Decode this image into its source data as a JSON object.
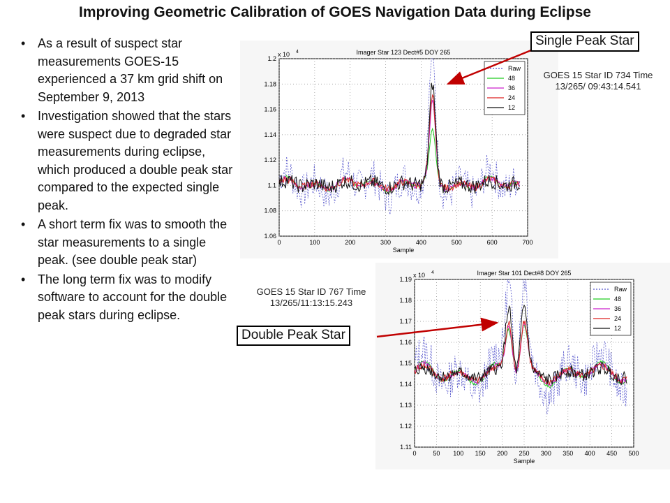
{
  "title": "Improving Geometric Calibration of GOES Navigation Data during Eclipse",
  "bullets": [
    "As a result of suspect star measurements GOES-15 experienced a 37 km grid shift on September 9, 2013",
    "Investigation showed that the stars were suspect due to degraded star measurements during eclipse, which produced a double peak star compared to the expected single peak.",
    "A short term fix was to smooth the star measurements to a single peak. (see double peak star)",
    "The long term fix was to modify software to account for the double peak stars during eclipse."
  ],
  "callouts": {
    "single": "Single Peak Star",
    "double": "Double Peak Star"
  },
  "captions": {
    "single_line1": "GOES 15 Star ID 734 Time",
    "single_line2": "13/265/ 09:43:14.541",
    "double_line1": "GOES 15 Star ID 767 Time",
    "double_line2": "13/265/11:13:15.243"
  },
  "chart_data": [
    {
      "type": "line",
      "title": "Imager Star 123 Dect#5 DOY 265",
      "xlabel": "Sample",
      "ylabel": "",
      "exponent_label": "x 10",
      "exponent_power": "4",
      "xlim": [
        0,
        700
      ],
      "ylim": [
        1.06,
        1.2
      ],
      "xticks": [
        0,
        100,
        200,
        300,
        400,
        500,
        600,
        700
      ],
      "yticks": [
        1.06,
        1.08,
        1.1,
        1.12,
        1.14,
        1.16,
        1.18,
        1.2
      ],
      "grid": true,
      "legend_position": "top-right",
      "series": [
        {
          "name": "Raw",
          "color": "#5555cc",
          "dash": "2,2",
          "width": 0.8,
          "noise": 0.014,
          "peak": 1.205
        },
        {
          "name": "48",
          "color": "#22cc22",
          "width": 1.0,
          "noise": 0.001,
          "peak": 1.14
        },
        {
          "name": "36",
          "color": "#cc22cc",
          "width": 1.0,
          "noise": 0.002,
          "peak": 1.162
        },
        {
          "name": "24",
          "color": "#dd2222",
          "width": 1.0,
          "noise": 0.003,
          "peak": 1.168
        },
        {
          "name": "12",
          "color": "#111111",
          "width": 1.0,
          "noise": 0.006,
          "peak": 1.178
        }
      ],
      "x_end": 680,
      "baseline": 1.101,
      "peaks_x": [
        432
      ],
      "peak_sigma": 12
    },
    {
      "type": "line",
      "title": "Imager Star 101 Dect#8 DOY 265",
      "xlabel": "Sample",
      "ylabel": "",
      "exponent_label": "x 10",
      "exponent_power": "4",
      "xlim": [
        0,
        500
      ],
      "ylim": [
        1.11,
        1.19
      ],
      "xticks": [
        0,
        50,
        100,
        150,
        200,
        250,
        300,
        350,
        400,
        450,
        500
      ],
      "yticks": [
        1.11,
        1.12,
        1.13,
        1.14,
        1.15,
        1.16,
        1.17,
        1.18,
        1.19
      ],
      "grid": true,
      "legend_position": "top-right",
      "series": [
        {
          "name": "Raw",
          "color": "#5555cc",
          "dash": "2,2",
          "width": 0.8,
          "noise": 0.009,
          "peak": 1.188
        },
        {
          "name": "48",
          "color": "#22cc22",
          "width": 1.0,
          "noise": 0.0008,
          "peak": 1.166
        },
        {
          "name": "36",
          "color": "#cc22cc",
          "width": 1.0,
          "noise": 0.0012,
          "peak": 1.167
        },
        {
          "name": "24",
          "color": "#dd2222",
          "width": 1.0,
          "noise": 0.0018,
          "peak": 1.169
        },
        {
          "name": "12",
          "color": "#111111",
          "width": 1.0,
          "noise": 0.003,
          "peak": 1.176
        }
      ],
      "x_end": 485,
      "baseline": 1.145,
      "peaks_x": [
        215,
        250
      ],
      "peak_sigma": 11
    }
  ]
}
